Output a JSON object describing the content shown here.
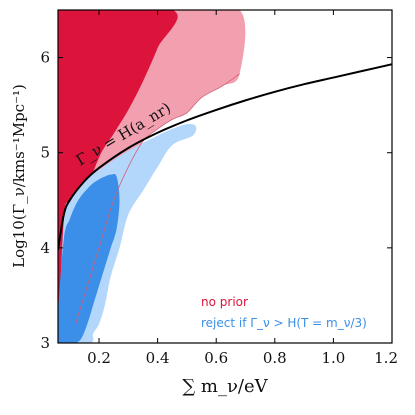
{
  "chart_data": {
    "type": "area",
    "xlabel": "∑ m_ν/eV",
    "ylabel": "Log10(Γ_ν/kms⁻¹Mpc⁻¹)",
    "xlim": [
      0.06,
      1.2
    ],
    "ylim": [
      3,
      6.5
    ],
    "x_ticks": [
      0.2,
      0.4,
      0.6,
      0.8,
      1.0,
      1.2
    ],
    "x_tick_labels": [
      "0.2",
      "0.4",
      "0.6",
      "0.8",
      "1.0",
      "1.2"
    ],
    "y_ticks": [
      3,
      4,
      5,
      6
    ],
    "y_tick_labels": [
      "3",
      "4",
      "5",
      "6"
    ],
    "grid": false,
    "legend": {
      "position": "bottom-right",
      "entries": [
        {
          "label": "no prior",
          "color": "#dc143c"
        },
        {
          "label": "reject if Γ_ν > H(T = m_ν/3)",
          "color": "#3b8fe8"
        }
      ]
    },
    "annotation": "Γ_ν = H(a_nr)",
    "hubble_curve": {
      "name": "Γ_ν = H(a_nr)",
      "color": "#000000",
      "x": [
        0.06,
        0.08,
        0.1,
        0.15,
        0.2,
        0.3,
        0.4,
        0.5,
        0.6,
        0.7,
        0.8,
        0.9,
        1.0,
        1.1,
        1.2
      ],
      "y": [
        3.98,
        4.35,
        4.5,
        4.7,
        4.84,
        5.05,
        5.21,
        5.34,
        5.45,
        5.55,
        5.64,
        5.72,
        5.79,
        5.86,
        5.93
      ]
    },
    "regions": [
      {
        "series": "no prior",
        "level": "95%",
        "color": "#f2a0b0",
        "x": [
          0.06,
          0.45,
          0.68,
          0.68,
          0.62,
          0.55,
          0.5,
          0.45,
          0.4,
          0.35,
          0.3,
          0.25,
          0.2,
          0.15,
          0.12,
          0.1,
          0.08,
          0.06
        ],
        "y": [
          6.5,
          6.5,
          6.5,
          5.83,
          5.7,
          5.58,
          5.42,
          5.35,
          5.25,
          5.12,
          4.85,
          4.5,
          4.0,
          3.5,
          3.2,
          3.0,
          3.0,
          3.0
        ]
      },
      {
        "series": "no prior",
        "level": "68%",
        "color": "#dc143c",
        "x": [
          0.06,
          0.45,
          0.4,
          0.35,
          0.3,
          0.25,
          0.2,
          0.15,
          0.12,
          0.1,
          0.08,
          0.06
        ],
        "y": [
          6.5,
          6.5,
          6.1,
          5.75,
          5.45,
          5.2,
          4.95,
          4.5,
          4.0,
          3.5,
          3.0,
          3.0
        ]
      },
      {
        "series": "reject if Γ_ν > H(T = m_ν/3)",
        "level": "95%",
        "color": "#b3d7fb",
        "x": [
          0.06,
          0.08,
          0.1,
          0.15,
          0.2,
          0.3,
          0.4,
          0.45,
          0.5,
          0.53,
          0.52,
          0.45,
          0.4,
          0.35,
          0.3,
          0.27,
          0.24,
          0.22,
          0.2,
          0.18,
          0.17,
          0.06
        ],
        "y": [
          3.0,
          4.3,
          4.5,
          4.7,
          4.82,
          5.02,
          5.18,
          5.25,
          5.3,
          5.28,
          5.18,
          5.08,
          4.85,
          4.6,
          4.35,
          4.0,
          3.7,
          3.4,
          3.2,
          3.1,
          3.0,
          3.0
        ]
      },
      {
        "series": "reject if Γ_ν > H(T = m_ν/3)",
        "level": "68%",
        "color": "#3b8fe8",
        "x": [
          0.06,
          0.08,
          0.1,
          0.12,
          0.14,
          0.16,
          0.18,
          0.2,
          0.22,
          0.24,
          0.26,
          0.27,
          0.26,
          0.24,
          0.22,
          0.2,
          0.18,
          0.16,
          0.14,
          0.12,
          0.1,
          0.08,
          0.06
        ],
        "y": [
          3.3,
          4.1,
          4.3,
          4.45,
          4.55,
          4.62,
          4.68,
          4.72,
          4.75,
          4.77,
          4.75,
          4.5,
          4.2,
          4.0,
          3.8,
          3.6,
          3.4,
          3.2,
          3.05,
          3.0,
          3.0,
          3.0,
          3.0
        ]
      }
    ]
  }
}
